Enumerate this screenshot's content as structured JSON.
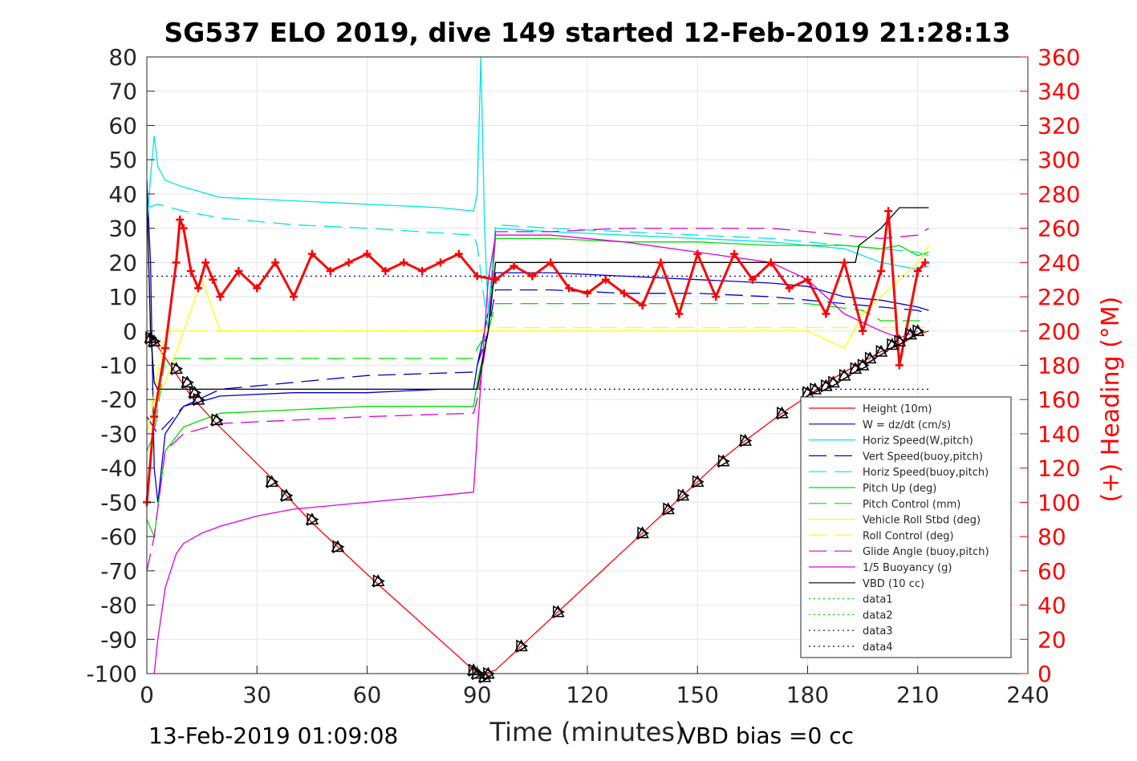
{
  "chart_data": {
    "type": "line",
    "title": "SG537 ELO 2019, dive 149 started 12-Feb-2019 21:28:13",
    "xlabel": "Time (minutes)",
    "ylabel": "",
    "y2label": "(+) Heading (°M)",
    "footer_left": "13-Feb-2019 01:09:08",
    "footer_right": "VBD bias =0 cc",
    "xlim": [
      0,
      240
    ],
    "ylim": [
      -100,
      80
    ],
    "y2lim": [
      0,
      360
    ],
    "xticks": [
      0,
      30,
      60,
      90,
      120,
      150,
      180,
      210,
      240
    ],
    "yticks": [
      -100,
      -90,
      -80,
      -70,
      -60,
      -50,
      -40,
      -30,
      -20,
      -10,
      0,
      10,
      20,
      30,
      40,
      50,
      60,
      70,
      80
    ],
    "y2ticks": [
      0,
      20,
      40,
      60,
      80,
      100,
      120,
      140,
      160,
      180,
      200,
      220,
      240,
      260,
      280,
      300,
      320,
      340,
      360
    ],
    "grid": true,
    "legend_position": "lower-right",
    "series": [
      {
        "name": "Height (10m)",
        "color": "#ff0000",
        "style": "solid",
        "x": [
          0,
          2,
          12,
          18,
          35,
          38,
          45,
          52,
          62,
          89,
          91,
          92,
          95,
          102,
          112,
          135,
          142,
          146,
          150,
          156,
          163,
          173,
          180,
          185,
          190,
          195,
          200,
          205,
          210,
          213
        ],
        "y": [
          -1,
          -3,
          -19,
          -26,
          -44,
          -48,
          -56,
          -63,
          -73,
          -99,
          -100,
          -100,
          -99,
          -92,
          -82,
          -59,
          -52,
          -48,
          -44,
          -38,
          -32,
          -24,
          -19,
          -15,
          -12,
          -9,
          -6,
          -4,
          -1,
          0
        ]
      },
      {
        "name": "W = dz/dt (cm/s)",
        "color": "#0000cc",
        "style": "solid",
        "x": [
          0,
          1,
          2,
          3,
          5,
          10,
          20,
          40,
          60,
          80,
          89,
          90,
          92,
          95,
          110,
          130,
          150,
          170,
          180,
          190,
          200,
          210,
          213
        ],
        "y": [
          44,
          20,
          -40,
          -50,
          -30,
          -22,
          -19,
          -18,
          -18,
          -17,
          -17,
          -10,
          0,
          17,
          17,
          16,
          15,
          14,
          13,
          10,
          9,
          7,
          6
        ]
      },
      {
        "name": "Horiz Speed(W,pitch)",
        "color": "#00e5e5",
        "style": "solid",
        "x": [
          0,
          1,
          2,
          3,
          5,
          10,
          20,
          40,
          60,
          80,
          89,
          90,
          91,
          92,
          93,
          95,
          110,
          130,
          150,
          170,
          180,
          190,
          200,
          210,
          213
        ],
        "y": [
          30,
          45,
          57,
          48,
          44,
          42,
          39,
          38,
          37,
          36,
          35,
          40,
          80,
          30,
          5,
          30,
          29,
          28,
          27,
          26,
          25,
          24,
          20,
          18,
          19
        ]
      },
      {
        "name": "Vert Speed(buoy,pitch)",
        "color": "#0000cc",
        "style": "dashed",
        "x": [
          0,
          3,
          10,
          20,
          40,
          60,
          89,
          90,
          93,
          95,
          110,
          130,
          150,
          170,
          180,
          190,
          200,
          210,
          213
        ],
        "y": [
          -25,
          -30,
          -22,
          -17,
          -15,
          -13,
          -12,
          -10,
          0,
          12,
          12,
          11,
          11,
          10,
          9,
          8,
          7,
          6,
          5
        ]
      },
      {
        "name": "Horiz Speed(buoy,pitch)",
        "color": "#00e5e5",
        "style": "dashed",
        "x": [
          0,
          3,
          10,
          20,
          40,
          60,
          89,
          90,
          93,
          95,
          110,
          130,
          150,
          170,
          180,
          190,
          200,
          210,
          213
        ],
        "y": [
          36,
          37,
          35,
          33,
          31,
          30,
          28,
          25,
          0,
          31,
          30,
          29,
          28,
          27,
          26,
          25,
          24,
          23,
          22
        ]
      },
      {
        "name": "Pitch Up (deg)",
        "color": "#00dd00",
        "style": "solid",
        "x": [
          0,
          2,
          5,
          10,
          20,
          40,
          60,
          89,
          90,
          93,
          95,
          110,
          130,
          150,
          170,
          180,
          190,
          200,
          205,
          210,
          213
        ],
        "y": [
          -55,
          -60,
          -35,
          -28,
          -24,
          -23,
          -22,
          -22,
          -15,
          0,
          27,
          27,
          26,
          26,
          25,
          25,
          25,
          24,
          25,
          22,
          23
        ]
      },
      {
        "name": "Pitch Control (mm)",
        "color": "#00dd00",
        "style": "dashed",
        "x": [
          0,
          2,
          5,
          89,
          90,
          93,
          95,
          180,
          195,
          200,
          213
        ],
        "y": [
          -35,
          -30,
          -8,
          -8,
          -5,
          0,
          8,
          8,
          6,
          3,
          3
        ]
      },
      {
        "name": "Vehicle Roll Stbd (deg)",
        "color": "#ffff00",
        "style": "solid",
        "x": [
          0,
          2,
          5,
          10,
          15,
          20,
          40,
          60,
          80,
          89,
          95,
          110,
          130,
          150,
          170,
          180,
          190,
          195,
          200,
          205,
          210,
          213
        ],
        "y": [
          -30,
          -20,
          -15,
          0,
          15,
          0,
          0,
          0,
          0,
          0,
          0,
          0,
          0,
          0,
          0,
          0,
          -5,
          5,
          10,
          15,
          20,
          25
        ]
      },
      {
        "name": "Roll Control (deg)",
        "color": "#ffff00",
        "style": "dashed",
        "x": [
          0,
          5,
          89,
          95,
          180,
          195,
          213
        ],
        "y": [
          -30,
          0,
          0,
          1,
          1,
          1,
          1
        ]
      },
      {
        "name": "Glide Angle (buoy,pitch)",
        "color": "#dd00dd",
        "style": "dashed",
        "x": [
          0,
          2,
          5,
          10,
          20,
          40,
          60,
          89,
          90,
          93,
          95,
          110,
          130,
          150,
          170,
          180,
          190,
          200,
          210,
          213
        ],
        "y": [
          -70,
          -60,
          -35,
          -30,
          -27,
          -26,
          -25,
          -24,
          -20,
          0,
          29,
          29,
          30,
          30,
          30,
          29,
          28,
          27,
          28,
          30
        ]
      },
      {
        "name": "1/5 Buoyancy (g)",
        "color": "#dd00dd",
        "style": "solid",
        "x": [
          2,
          3,
          5,
          8,
          10,
          15,
          20,
          30,
          40,
          60,
          80,
          89,
          90,
          93,
          95,
          110,
          130,
          150,
          170,
          180,
          190,
          200,
          205,
          210
        ],
        "y": [
          -100,
          -90,
          -75,
          -65,
          -62,
          -59,
          -57,
          -54,
          -52,
          -50,
          -48,
          -47,
          -30,
          15,
          28,
          28,
          26,
          23,
          20,
          15,
          5,
          0,
          -2,
          0
        ]
      },
      {
        "name": "VBD (10 cc)",
        "color": "#000000",
        "style": "solid",
        "x": [
          0,
          1,
          2,
          3,
          5,
          89,
          90,
          93,
          95,
          180,
          193,
          194,
          200,
          205,
          210,
          213
        ],
        "y": [
          40,
          0,
          -15,
          -17,
          -17,
          -17,
          -17,
          0,
          20,
          20,
          20,
          25,
          30,
          36,
          36,
          36
        ]
      },
      {
        "name": "data1",
        "color": "#00dd00",
        "style": "dotted",
        "x": [],
        "y": []
      },
      {
        "name": "data2",
        "color": "#00dd00",
        "style": "dotted",
        "x": [],
        "y": []
      },
      {
        "name": "data3",
        "color": "#000099",
        "style": "dotted",
        "x": [
          0,
          213
        ],
        "y": [
          16,
          16
        ]
      },
      {
        "name": "data4",
        "color": "#000099",
        "style": "dotted",
        "x": [
          0,
          213
        ],
        "y": [
          -17,
          -17
        ]
      }
    ],
    "heading_series": {
      "axis": "right",
      "color": "#ff0000",
      "marker": "+",
      "x": [
        0,
        2,
        5,
        8,
        9,
        10,
        12,
        14,
        16,
        18,
        20,
        25,
        30,
        35,
        40,
        45,
        50,
        55,
        60,
        65,
        70,
        75,
        80,
        85,
        90,
        95,
        100,
        105,
        110,
        115,
        120,
        125,
        130,
        135,
        140,
        145,
        150,
        155,
        160,
        165,
        170,
        175,
        180,
        185,
        190,
        195,
        200,
        202,
        205,
        210,
        212
      ],
      "y": [
        100,
        150,
        190,
        240,
        265,
        260,
        235,
        225,
        240,
        230,
        220,
        235,
        225,
        240,
        220,
        245,
        235,
        240,
        245,
        235,
        240,
        235,
        240,
        245,
        232,
        230,
        238,
        232,
        240,
        225,
        222,
        230,
        222,
        215,
        240,
        210,
        245,
        220,
        245,
        230,
        240,
        225,
        230,
        210,
        240,
        200,
        235,
        270,
        180,
        235,
        240
      ]
    },
    "marker_series": {
      "marker": "triangles",
      "color": "#000000",
      "x": [
        1,
        2,
        8,
        11,
        13,
        14,
        19,
        34,
        38,
        45,
        52,
        63,
        89,
        90,
        92,
        93,
        102,
        112,
        135,
        142,
        146,
        150,
        157,
        163,
        173,
        180,
        182,
        185,
        187,
        190,
        193,
        195,
        197,
        200,
        203,
        205,
        208,
        210
      ],
      "y": [
        -2,
        -3,
        -11,
        -15,
        -18,
        -20,
        -26,
        -44,
        -48,
        -55,
        -63,
        -73,
        -99,
        -100,
        -101,
        -100,
        -92,
        -82,
        -59,
        -52,
        -48,
        -44,
        -38,
        -32,
        -24,
        -18,
        -17,
        -16,
        -15,
        -13,
        -11,
        -10,
        -8,
        -6,
        -4,
        -3,
        -1,
        0
      ]
    }
  }
}
